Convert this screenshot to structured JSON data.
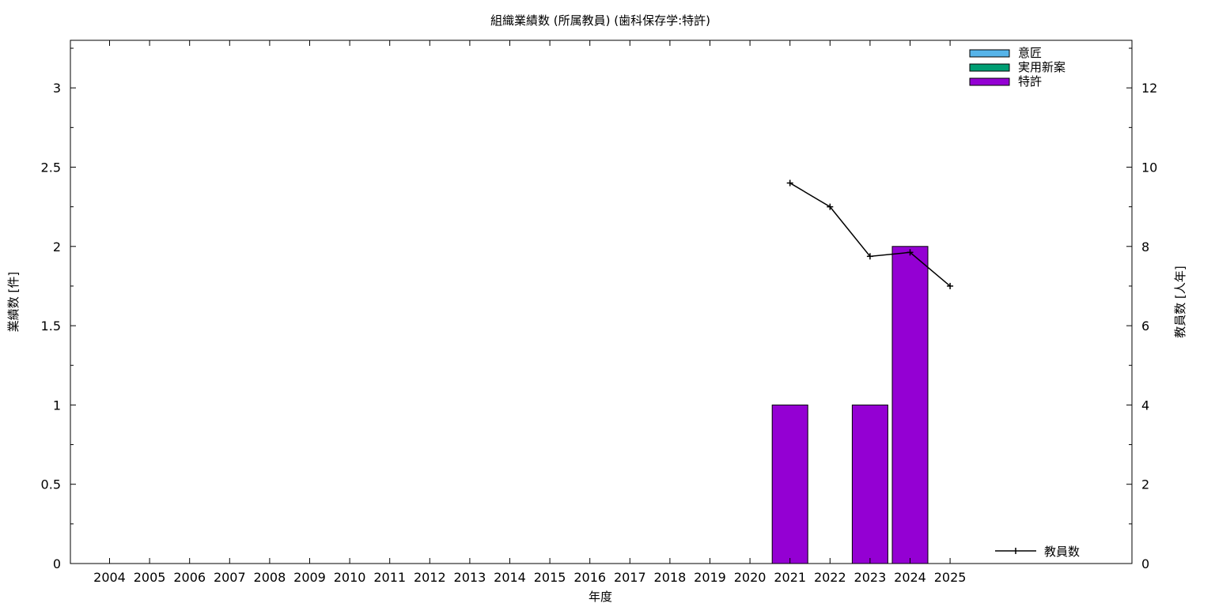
{
  "chart_data": {
    "type": "bar",
    "title": "組織業績数 (所属教員) (歯科保存学:特許)",
    "xlabel": "年度",
    "ylabel": "業績数 [件]",
    "y2label": "教員数 [人年]",
    "categories": [
      "2004",
      "2005",
      "2006",
      "2007",
      "2008",
      "2009",
      "2010",
      "2011",
      "2012",
      "2013",
      "2014",
      "2015",
      "2016",
      "2017",
      "2018",
      "2019",
      "2020",
      "2021",
      "2022",
      "2023",
      "2024",
      "2025"
    ],
    "ylim": [
      0,
      3.3
    ],
    "y2lim": [
      0,
      13.2
    ],
    "yticks": [
      "0",
      "0.5",
      "1",
      "1.5",
      "2",
      "2.5",
      "3"
    ],
    "y2ticks": [
      "0",
      "2",
      "4",
      "6",
      "8",
      "10",
      "12"
    ],
    "grid": false,
    "legend_position": "top-right",
    "series": [
      {
        "name": "意匠",
        "color": "#56b4e9",
        "values": [
          0,
          0,
          0,
          0,
          0,
          0,
          0,
          0,
          0,
          0,
          0,
          0,
          0,
          0,
          0,
          0,
          0,
          0,
          0,
          0,
          0,
          0
        ]
      },
      {
        "name": "実用新案",
        "color": "#009e73",
        "values": [
          0,
          0,
          0,
          0,
          0,
          0,
          0,
          0,
          0,
          0,
          0,
          0,
          0,
          0,
          0,
          0,
          0,
          0,
          0,
          0,
          0,
          0
        ]
      },
      {
        "name": "特許",
        "color": "#9400d3",
        "values": [
          0,
          0,
          0,
          0,
          0,
          0,
          0,
          0,
          0,
          0,
          0,
          0,
          0,
          0,
          0,
          0,
          0,
          1,
          0,
          1,
          2,
          0
        ]
      }
    ],
    "line_series": {
      "name": "教員数",
      "axis": "y2",
      "color": "#000000",
      "x": [
        "2021",
        "2022",
        "2023",
        "2024",
        "2025"
      ],
      "values": [
        9.6,
        9.0,
        7.75,
        7.85,
        7.0
      ]
    }
  }
}
